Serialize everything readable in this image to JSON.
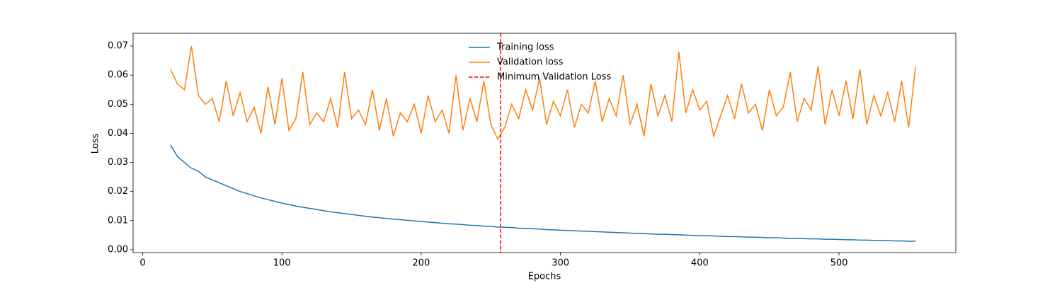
{
  "chart_data": {
    "type": "line",
    "xlabel": "Epochs",
    "ylabel": "Loss",
    "x": [
      20,
      25,
      30,
      35,
      40,
      45,
      50,
      55,
      60,
      65,
      70,
      75,
      80,
      85,
      90,
      95,
      100,
      105,
      110,
      115,
      120,
      125,
      130,
      135,
      140,
      145,
      150,
      155,
      160,
      165,
      170,
      175,
      180,
      185,
      190,
      195,
      200,
      205,
      210,
      215,
      220,
      225,
      230,
      235,
      240,
      245,
      250,
      255,
      260,
      265,
      270,
      275,
      280,
      285,
      290,
      295,
      300,
      305,
      310,
      315,
      320,
      325,
      330,
      335,
      340,
      345,
      350,
      355,
      360,
      365,
      370,
      375,
      380,
      385,
      390,
      395,
      400,
      405,
      410,
      415,
      420,
      425,
      430,
      435,
      440,
      445,
      450,
      455,
      460,
      465,
      470,
      475,
      480,
      485,
      490,
      495,
      500,
      505,
      510,
      515,
      520,
      525,
      530,
      535,
      540,
      545,
      550,
      555
    ],
    "series": [
      {
        "name": "Training loss",
        "color": "#1f77b4",
        "values": [
          0.036,
          0.032,
          0.03,
          0.028,
          0.027,
          0.025,
          0.024,
          0.023,
          0.022,
          0.021,
          0.02,
          0.0193,
          0.0185,
          0.0178,
          0.0172,
          0.0166,
          0.016,
          0.0155,
          0.015,
          0.0146,
          0.0142,
          0.0138,
          0.0134,
          0.013,
          0.0127,
          0.0124,
          0.0121,
          0.0118,
          0.0115,
          0.0112,
          0.011,
          0.0107,
          0.0105,
          0.0103,
          0.0101,
          0.0099,
          0.0097,
          0.0095,
          0.0093,
          0.0091,
          0.0089,
          0.0088,
          0.0086,
          0.0084,
          0.0083,
          0.0081,
          0.008,
          0.0078,
          0.0077,
          0.0076,
          0.0074,
          0.0073,
          0.0072,
          0.0071,
          0.0069,
          0.0068,
          0.0067,
          0.0066,
          0.0065,
          0.0064,
          0.0063,
          0.0062,
          0.0061,
          0.006,
          0.0059,
          0.0058,
          0.0057,
          0.0056,
          0.0055,
          0.0054,
          0.0053,
          0.0053,
          0.0052,
          0.0051,
          0.005,
          0.0049,
          0.0048,
          0.0048,
          0.0047,
          0.0046,
          0.0045,
          0.0045,
          0.0044,
          0.0043,
          0.0043,
          0.0042,
          0.0041,
          0.0041,
          0.004,
          0.0039,
          0.0039,
          0.0038,
          0.0037,
          0.0037,
          0.0036,
          0.0036,
          0.0035,
          0.0034,
          0.0034,
          0.0033,
          0.0033,
          0.0032,
          0.0032,
          0.0031,
          0.003,
          0.003,
          0.0029,
          0.0029
        ]
      },
      {
        "name": "Validation loss",
        "color": "#ff7f0e",
        "values": [
          0.062,
          0.057,
          0.055,
          0.07,
          0.053,
          0.05,
          0.052,
          0.044,
          0.058,
          0.046,
          0.054,
          0.044,
          0.049,
          0.04,
          0.056,
          0.043,
          0.059,
          0.041,
          0.045,
          0.061,
          0.043,
          0.047,
          0.044,
          0.052,
          0.042,
          0.061,
          0.045,
          0.048,
          0.043,
          0.055,
          0.041,
          0.052,
          0.039,
          0.047,
          0.044,
          0.05,
          0.04,
          0.053,
          0.044,
          0.048,
          0.04,
          0.06,
          0.041,
          0.052,
          0.044,
          0.058,
          0.043,
          0.038,
          0.042,
          0.05,
          0.045,
          0.055,
          0.048,
          0.059,
          0.043,
          0.051,
          0.046,
          0.055,
          0.042,
          0.05,
          0.047,
          0.058,
          0.044,
          0.052,
          0.046,
          0.06,
          0.043,
          0.05,
          0.039,
          0.057,
          0.046,
          0.053,
          0.044,
          0.068,
          0.047,
          0.055,
          0.048,
          0.051,
          0.039,
          0.046,
          0.053,
          0.045,
          0.057,
          0.047,
          0.05,
          0.041,
          0.055,
          0.046,
          0.049,
          0.061,
          0.044,
          0.052,
          0.048,
          0.063,
          0.043,
          0.055,
          0.046,
          0.058,
          0.045,
          0.062,
          0.043,
          0.053,
          0.046,
          0.054,
          0.044,
          0.058,
          0.042,
          0.063
        ]
      }
    ],
    "vline": {
      "name": "Minimum Validation Loss",
      "x": 257,
      "color": "#ff0000"
    },
    "xlim": [
      -6.85,
      583.85
    ],
    "ylim": [
      -0.001,
      0.0744
    ],
    "xticks": [
      0,
      100,
      200,
      300,
      400,
      500
    ],
    "yticks": [
      {
        "value": 0,
        "label": "0.00"
      },
      {
        "value": 0.01,
        "label": "0.01"
      },
      {
        "value": 0.02,
        "label": "0.02"
      },
      {
        "value": 0.03,
        "label": "0.03"
      },
      {
        "value": 0.04,
        "label": "0.04"
      },
      {
        "value": 0.05,
        "label": "0.05"
      },
      {
        "value": 0.06,
        "label": "0.06"
      },
      {
        "value": 0.07,
        "label": "0.07"
      }
    ],
    "legend": "upper center",
    "grid": false
  }
}
